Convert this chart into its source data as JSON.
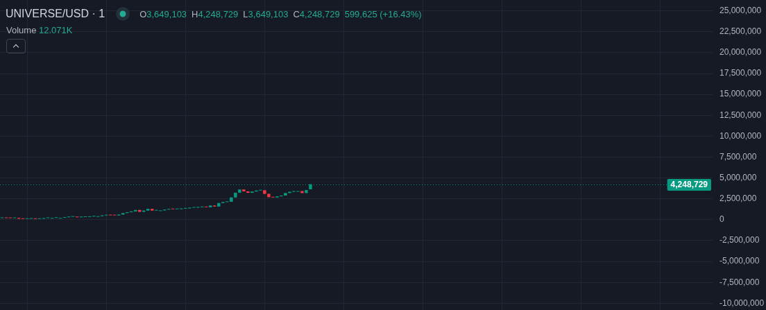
{
  "chart_data": {
    "type": "candlestick",
    "title": "UNIVERSE/USD · 1",
    "categories": [
      null,
      null,
      null,
      null,
      null,
      null,
      null,
      null,
      null,
      null,
      null,
      null,
      null,
      null,
      null,
      null,
      null,
      null,
      null,
      null,
      null,
      null,
      null,
      null,
      null,
      null,
      null,
      null,
      null,
      null,
      null,
      null,
      null,
      null,
      null,
      null,
      null,
      null,
      null,
      null,
      null,
      null,
      null,
      null,
      null,
      null,
      null,
      null,
      null,
      null,
      null,
      null,
      null,
      null,
      null,
      null,
      null,
      null,
      null,
      null,
      null,
      null,
      null,
      null,
      null,
      null,
      null,
      null,
      null,
      null,
      null,
      null,
      null,
      null,
      null,
      null,
      null,
      null,
      null,
      null,
      null,
      null,
      null,
      null,
      null,
      null,
      null,
      null,
      null,
      null,
      null,
      null,
      null,
      null,
      null,
      null,
      null,
      null,
      null,
      null,
      null,
      null,
      null,
      null,
      null,
      null,
      null,
      null,
      null,
      null,
      null,
      null,
      null,
      null,
      null,
      null,
      null,
      null,
      null,
      null,
      null,
      null,
      null,
      null,
      null,
      null,
      null,
      null,
      null,
      null,
      null,
      null,
      null,
      null,
      null,
      null,
      null,
      null,
      null,
      null,
      null,
      null,
      null,
      null,
      null,
      null,
      null,
      null,
      null,
      null,
      null,
      null,
      null,
      null,
      null,
      null,
      null,
      null,
      null,
      null,
      null,
      null,
      null,
      null,
      null,
      null,
      null,
      null,
      null,
      null,
      null
    ],
    "ohlc": [
      [
        200000,
        220000,
        200000,
        220000
      ],
      [
        220000,
        220000,
        200000,
        200000
      ],
      [
        200000,
        200000,
        190000,
        190000
      ],
      [
        190000,
        220000,
        190000,
        220000
      ],
      [
        220000,
        220000,
        120000,
        120000
      ],
      [
        120000,
        120000,
        100000,
        100000
      ],
      [
        100000,
        120000,
        100000,
        120000
      ],
      [
        120000,
        130000,
        120000,
        130000
      ],
      [
        130000,
        130000,
        100000,
        100000
      ],
      [
        100000,
        120000,
        100000,
        120000
      ],
      [
        120000,
        200000,
        120000,
        200000
      ],
      [
        200000,
        220000,
        200000,
        220000
      ],
      [
        220000,
        220000,
        220000,
        220000
      ],
      [
        220000,
        230000,
        220000,
        230000
      ],
      [
        230000,
        230000,
        230000,
        230000
      ],
      [
        230000,
        300000,
        230000,
        300000
      ],
      [
        300000,
        350000,
        300000,
        350000
      ],
      [
        350000,
        360000,
        350000,
        360000
      ],
      [
        360000,
        360000,
        300000,
        300000
      ],
      [
        300000,
        320000,
        300000,
        320000
      ],
      [
        320000,
        330000,
        320000,
        330000
      ],
      [
        330000,
        380000,
        330000,
        380000
      ],
      [
        380000,
        430000,
        380000,
        430000
      ],
      [
        430000,
        430000,
        430000,
        430000
      ],
      [
        430000,
        520000,
        430000,
        520000
      ],
      [
        520000,
        550000,
        520000,
        550000
      ],
      [
        550000,
        550000,
        530000,
        530000
      ],
      [
        530000,
        530000,
        520000,
        520000
      ],
      [
        520000,
        620000,
        520000,
        620000
      ],
      [
        620000,
        800000,
        620000,
        800000
      ],
      [
        800000,
        900000,
        800000,
        900000
      ],
      [
        900000,
        1000000,
        900000,
        1000000
      ],
      [
        1000000,
        1170000,
        1000000,
        1170000
      ],
      [
        1170000,
        1170000,
        950000,
        950000
      ],
      [
        950000,
        1100000,
        950000,
        1100000
      ],
      [
        1100000,
        1300000,
        1100000,
        1300000
      ],
      [
        1300000,
        1300000,
        1100000,
        1100000
      ],
      [
        1100000,
        1120000,
        1100000,
        1120000
      ],
      [
        1120000,
        1120000,
        1120000,
        1120000
      ],
      [
        1120000,
        1220000,
        1120000,
        1220000
      ],
      [
        1220000,
        1280000,
        1220000,
        1280000
      ],
      [
        1280000,
        1280000,
        1260000,
        1260000
      ],
      [
        1260000,
        1270000,
        1260000,
        1270000
      ],
      [
        1270000,
        1330000,
        1270000,
        1330000
      ],
      [
        1330000,
        1360000,
        1330000,
        1360000
      ],
      [
        1360000,
        1440000,
        1360000,
        1440000
      ],
      [
        1440000,
        1450000,
        1440000,
        1450000
      ],
      [
        1450000,
        1500000,
        1450000,
        1500000
      ],
      [
        1500000,
        1550000,
        1500000,
        1550000
      ],
      [
        1550000,
        1550000,
        1500000,
        1500000
      ],
      [
        1500000,
        1700000,
        1500000,
        1700000
      ],
      [
        1700000,
        1700000,
        1580000,
        1580000
      ],
      [
        1580000,
        2000000,
        1580000,
        2000000
      ],
      [
        2000000,
        2120000,
        2000000,
        2120000
      ],
      [
        2120000,
        2150000,
        2120000,
        2150000
      ],
      [
        2150000,
        2670000,
        2150000,
        2670000
      ],
      [
        2670000,
        3240000,
        2670000,
        3240000
      ],
      [
        3240000,
        3620000,
        3240000,
        3620000
      ],
      [
        3620000,
        3620000,
        3400000,
        3400000
      ],
      [
        3400000,
        3400000,
        3220000,
        3220000
      ],
      [
        3220000,
        3380000,
        3220000,
        3380000
      ],
      [
        3380000,
        3500000,
        3380000,
        3500000
      ],
      [
        3500000,
        3530000,
        3500000,
        3530000
      ],
      [
        3530000,
        3530000,
        3100000,
        3100000
      ],
      [
        3100000,
        3100000,
        2700000,
        2700000
      ],
      [
        2700000,
        2700000,
        2670000,
        2670000
      ],
      [
        2670000,
        2800000,
        2670000,
        2800000
      ],
      [
        2800000,
        2900000,
        2800000,
        2900000
      ],
      [
        2900000,
        3200000,
        2900000,
        3200000
      ],
      [
        3200000,
        3350000,
        3200000,
        3350000
      ],
      [
        3350000,
        3430000,
        3350000,
        3430000
      ],
      [
        3430000,
        3430000,
        3430000,
        3430000
      ],
      [
        3430000,
        3430000,
        3200000,
        3200000
      ],
      [
        3200000,
        3550000,
        3200000,
        3550000
      ],
      [
        3649103,
        4248729,
        3649103,
        4248729
      ],
      null,
      null,
      null,
      null,
      null,
      null,
      null,
      null,
      null,
      null,
      null,
      null,
      null,
      null,
      null,
      null,
      null,
      null,
      null,
      null,
      null,
      null,
      null,
      null,
      null,
      null,
      null,
      null,
      null,
      null,
      null,
      null,
      null,
      null,
      null,
      null,
      null,
      null,
      null,
      null,
      null,
      null,
      null,
      null,
      null,
      null,
      null,
      null,
      null,
      null,
      null,
      null,
      null,
      null,
      null,
      null,
      null,
      null,
      null,
      null,
      null,
      null,
      null,
      null,
      null,
      null,
      null,
      null,
      null,
      null,
      null,
      null,
      null,
      null,
      null,
      null,
      null,
      null,
      null,
      null,
      null,
      null,
      null,
      null,
      null,
      null,
      null,
      null,
      null,
      null,
      null,
      null,
      null,
      null,
      null,
      null
    ],
    "colors": [
      "#089981",
      "#f23645",
      "#f23645",
      "#089981",
      "#f23645",
      "#f23645",
      "#089981",
      "#089981",
      "#f23645",
      "#089981",
      "#089981",
      "#089981",
      "#089981",
      "#089981",
      "#089981",
      "#089981",
      "#089981",
      "#089981",
      "#f23645",
      "#089981",
      "#089981",
      "#089981",
      "#089981",
      "#089981",
      "#089981",
      "#089981",
      "#f23645",
      "#f23645",
      "#089981",
      "#089981",
      "#089981",
      "#089981",
      "#089981",
      "#f23645",
      "#089981",
      "#089981",
      "#f23645",
      "#089981",
      "#089981",
      "#089981",
      "#089981",
      "#f23645",
      "#089981",
      "#089981",
      "#089981",
      "#089981",
      "#089981",
      "#089981",
      "#089981",
      "#f23645",
      "#089981",
      "#f23645",
      "#089981",
      "#089981",
      "#089981",
      "#089981",
      "#089981",
      "#089981",
      "#f23645",
      "#f23645",
      "#089981",
      "#089981",
      "#089981",
      "#f23645",
      "#f23645",
      "#f23645",
      "#089981",
      "#089981",
      "#089981",
      "#089981",
      "#089981",
      "#089981",
      "#f23645",
      "#089981",
      "#089981",
      null,
      null,
      null,
      null,
      null,
      null,
      null,
      null,
      null,
      null,
      null,
      null,
      null,
      null,
      null,
      null,
      null,
      null,
      null,
      null,
      null,
      null,
      null,
      null,
      null,
      null,
      null,
      null,
      null,
      null,
      null,
      null,
      null,
      null,
      null,
      null,
      null,
      null,
      null,
      null,
      null,
      null,
      null,
      null,
      null,
      null,
      null,
      null,
      null,
      null,
      null,
      null,
      null,
      null,
      null,
      null,
      null,
      null,
      null,
      null,
      null,
      null,
      null,
      null,
      null,
      null,
      null,
      null,
      null,
      null,
      null,
      null,
      null,
      null,
      null,
      null,
      null,
      null,
      null,
      null,
      null,
      null,
      null,
      null,
      null,
      null,
      null,
      null,
      null,
      null,
      null,
      null,
      null,
      null,
      null,
      null
    ],
    "ylim": [
      -10800000,
      26300000
    ],
    "yticks": [
      {
        "value": -10000000,
        "label": "-10,000,000"
      },
      {
        "value": -7500000,
        "label": "-7,500,000"
      },
      {
        "value": -5000000,
        "label": "-5,000,000"
      },
      {
        "value": -2500000,
        "label": "-2,500,000"
      },
      0,
      {
        "value": 2500000,
        "label": "2,500,000"
      },
      {
        "value": 5000000,
        "label": "5,000,000"
      },
      {
        "value": 7500000,
        "label": "7,500,000"
      },
      {
        "value": 10000000,
        "label": "10,000,000"
      },
      {
        "value": 12500000,
        "label": "12,500,000"
      },
      {
        "value": 15000000,
        "label": "15,000,000"
      },
      {
        "value": 17500000,
        "label": "17,500,000"
      },
      {
        "value": 20000000,
        "label": "20,000,000"
      },
      {
        "value": 22500000,
        "label": "22,500,000"
      },
      {
        "value": 25000000,
        "label": "25,000,000"
      }
    ],
    "grid": true,
    "tick_labels": "y",
    "ref_lines": [
      {
        "axis": "y",
        "value": 4248729,
        "label": "4,248,729",
        "color": "#089981",
        "line_style": "dotted"
      }
    ],
    "annotations": [
      "O3,649,103",
      "H4,248,729",
      "L3,649,103",
      "C4,248,729",
      "599,625 (+16.43%)",
      "Volume 12.071K"
    ]
  }
}
